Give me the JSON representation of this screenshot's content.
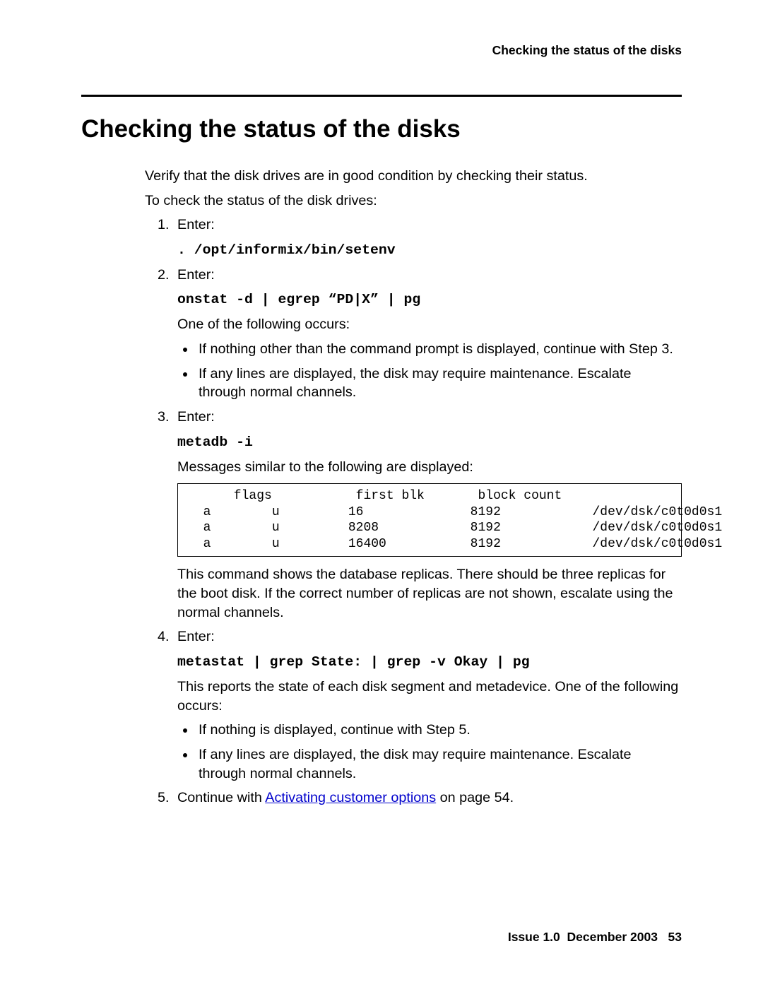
{
  "running_head": "Checking the status of the disks",
  "title": "Checking the status of the disks",
  "intro1": "Verify that the disk drives are in good condition by checking their status.",
  "intro2": "To check the status of the disk drives:",
  "steps": {
    "s1": {
      "label": "Enter:",
      "cmd": ". /opt/informix/bin/setenv"
    },
    "s2": {
      "label": "Enter:",
      "cmd": "onstat -d | egrep “PD|X” | pg",
      "after": "One of the following occurs:",
      "b1": "If nothing other than the command prompt is displayed, continue with Step 3.",
      "b2": "If any lines are displayed, the disk may require maintenance. Escalate through normal channels."
    },
    "s3": {
      "label": "Enter:",
      "cmd": "metadb -i",
      "after": "Messages similar to the following are displayed:",
      "output": "      flags           first blk       block count\n  a        u         16              8192            /dev/dsk/c0t0d0s1\n  a        u         8208            8192            /dev/dsk/c0t0d0s1\n  a        u         16400           8192            /dev/dsk/c0t0d0s1",
      "explain": "This command shows the database replicas. There should be three replicas for the boot disk. If the correct number of replicas are not shown, escalate using the normal channels."
    },
    "s4": {
      "label": "Enter:",
      "cmd": "metastat | grep State: | grep -v Okay | pg",
      "after": "This reports the state of each disk segment and metadevice. One of the following occurs:",
      "b1": "If nothing is displayed, continue with Step 5.",
      "b2": "If any lines are displayed, the disk may require maintenance. Escalate through normal channels."
    },
    "s5": {
      "pre": "Continue with ",
      "link": "Activating customer options",
      "post": " on page 54."
    }
  },
  "footer": {
    "issue": "Issue 1.0",
    "date": "December 2003",
    "page": "53"
  },
  "link_color": "#0000cc"
}
